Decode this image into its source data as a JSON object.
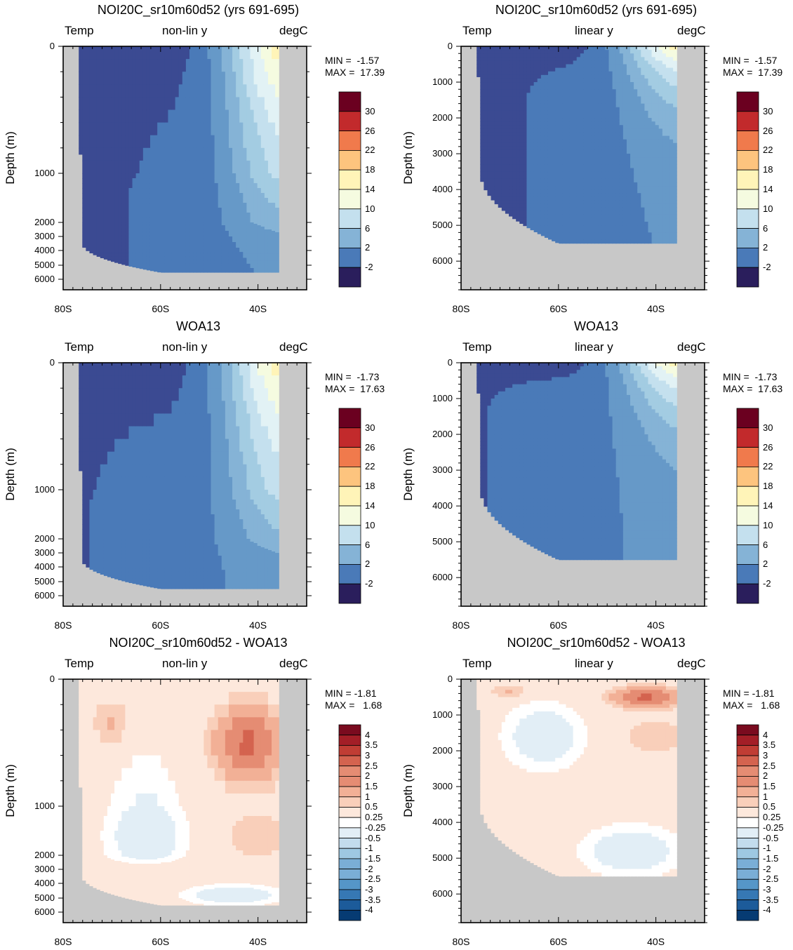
{
  "chart_data": [
    {
      "type": "heatmap",
      "title": "NOI20C_sr10m60d52 (yrs 691-695)",
      "left_label": "Temp",
      "center_label": "non-lin y",
      "right_label": "degC",
      "ylabel": "Depth (m)",
      "min_text": "MIN =  -1.57",
      "max_text": "MAX =  17.39",
      "x_ticks": [
        "80S",
        "60S",
        "40S"
      ],
      "y_ticks": [
        "0",
        "1000",
        "2000",
        "3000",
        "4000",
        "5000",
        "6000"
      ],
      "y_scale": "non-linear",
      "colorbar": [
        "30",
        "26",
        "22",
        "18",
        "14",
        "10",
        "6",
        "2",
        "-2"
      ],
      "field": "temp"
    },
    {
      "type": "heatmap",
      "title": "NOI20C_sr10m60d52 (yrs 691-695)",
      "left_label": "Temp",
      "center_label": "linear y",
      "right_label": "degC",
      "ylabel": "Depth (m)",
      "min_text": "MIN =  -1.57",
      "max_text": "MAX =  17.39",
      "x_ticks": [
        "80S",
        "60S",
        "40S"
      ],
      "y_ticks": [
        "0",
        "1000",
        "2000",
        "3000",
        "4000",
        "5000",
        "6000"
      ],
      "y_scale": "linear",
      "colorbar": [
        "30",
        "26",
        "22",
        "18",
        "14",
        "10",
        "6",
        "2",
        "-2"
      ],
      "field": "temp"
    },
    {
      "type": "heatmap",
      "title": "WOA13",
      "left_label": "Temp",
      "center_label": "non-lin y",
      "right_label": "degC",
      "ylabel": "Depth (m)",
      "min_text": "MIN =  -1.73",
      "max_text": "MAX =  17.63",
      "x_ticks": [
        "80S",
        "60S",
        "40S"
      ],
      "y_ticks": [
        "0",
        "1000",
        "2000",
        "3000",
        "4000",
        "5000",
        "6000"
      ],
      "y_scale": "non-linear",
      "colorbar": [
        "30",
        "26",
        "22",
        "18",
        "14",
        "10",
        "6",
        "2",
        "-2"
      ],
      "field": "temp"
    },
    {
      "type": "heatmap",
      "title": "WOA13",
      "left_label": "Temp",
      "center_label": "linear y",
      "right_label": "degC",
      "ylabel": "Depth (m)",
      "min_text": "MIN =  -1.73",
      "max_text": "MAX =  17.63",
      "x_ticks": [
        "80S",
        "60S",
        "40S"
      ],
      "y_ticks": [
        "0",
        "1000",
        "2000",
        "3000",
        "4000",
        "5000",
        "6000"
      ],
      "y_scale": "linear",
      "colorbar": [
        "30",
        "26",
        "22",
        "18",
        "14",
        "10",
        "6",
        "2",
        "-2"
      ],
      "field": "temp"
    },
    {
      "type": "heatmap",
      "title": "NOI20C_sr10m60d52 - WOA13",
      "left_label": "Temp",
      "center_label": "non-lin y",
      "right_label": "degC",
      "ylabel": "Depth (m)",
      "min_text": "MIN = -1.81",
      "max_text": "MAX =   1.68",
      "x_ticks": [
        "80S",
        "60S",
        "40S"
      ],
      "y_ticks": [
        "0",
        "1000",
        "2000",
        "3000",
        "4000",
        "5000",
        "6000"
      ],
      "y_scale": "non-linear",
      "colorbar": [
        "4",
        "3.5",
        "3",
        "2.5",
        "2",
        "1.5",
        "1",
        "0.5",
        "0.25",
        "-0.25",
        "-0.5",
        "-1",
        "-1.5",
        "-2",
        "-2.5",
        "-3",
        "-3.5",
        "-4"
      ],
      "field": "diff"
    },
    {
      "type": "heatmap",
      "title": "NOI20C_sr10m60d52 - WOA13",
      "left_label": "Temp",
      "center_label": "linear y",
      "right_label": "degC",
      "ylabel": "Depth (m)",
      "min_text": "MIN = -1.81",
      "max_text": "MAX =   1.68",
      "x_ticks": [
        "80S",
        "60S",
        "40S"
      ],
      "y_ticks": [
        "0",
        "1000",
        "2000",
        "3000",
        "4000",
        "5000",
        "6000"
      ],
      "y_scale": "linear",
      "colorbar": [
        "4",
        "3.5",
        "3",
        "2.5",
        "2",
        "1.5",
        "1",
        "0.5",
        "0.25",
        "-0.25",
        "-0.5",
        "-1",
        "-1.5",
        "-2",
        "-2.5",
        "-3",
        "-3.5",
        "-4"
      ],
      "field": "diff"
    }
  ],
  "colors": {
    "land": "#c8c8c8",
    "temp_palette": [
      "#2a1e5c",
      "#3b4a92",
      "#4a7ab8",
      "#6699c8",
      "#85b3d6",
      "#a3cce2",
      "#c4e0ee",
      "#e2f2f5",
      "#f5fbe0",
      "#fff4b8",
      "#ffe396",
      "#fdc47e",
      "#f9a062",
      "#f07a4c",
      "#de4f38",
      "#c22a2c",
      "#9c1226",
      "#6b0020"
    ],
    "diff_palette": [
      "#063b73",
      "#1c5b9a",
      "#3678b4",
      "#5596c8",
      "#7aaed6",
      "#9ec8e2",
      "#c3dced",
      "#e2eef6",
      "#ffffff",
      "#fde8dc",
      "#f9cfba",
      "#f2b096",
      "#e58c73",
      "#d4634f",
      "#c03d34",
      "#a31e27",
      "#7a0b1f"
    ]
  }
}
